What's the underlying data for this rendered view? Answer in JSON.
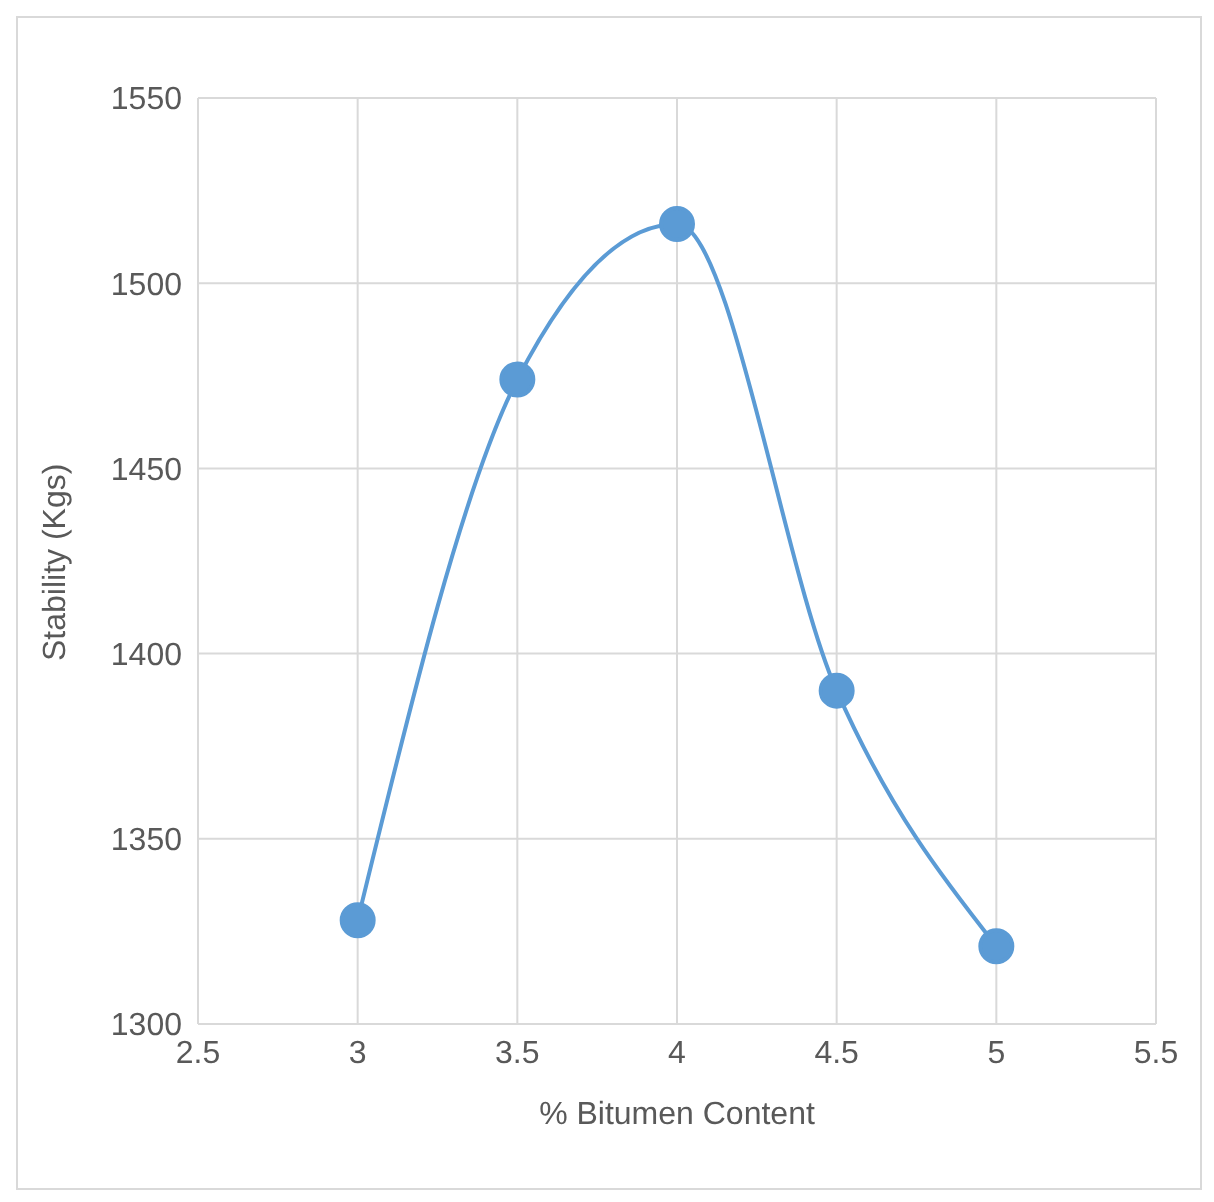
{
  "chart_data": {
    "type": "line",
    "xlabel": "% Bitumen Content",
    "ylabel": "Stability (Kgs)",
    "x": [
      3,
      3.5,
      4,
      4.5,
      5
    ],
    "series": [
      {
        "color": "#5b9bd5",
        "values": [
          1328,
          1474,
          1516,
          1390,
          1321
        ]
      }
    ],
    "xlim": [
      2.5,
      5.5
    ],
    "xticks": [
      2.5,
      3,
      3.5,
      4,
      4.5,
      5,
      5.5
    ],
    "ylim": [
      1300,
      1550
    ],
    "yticks": [
      1300,
      1350,
      1400,
      1450,
      1500,
      1550
    ],
    "grid": true,
    "marker": "circle",
    "line_style": "solid"
  }
}
